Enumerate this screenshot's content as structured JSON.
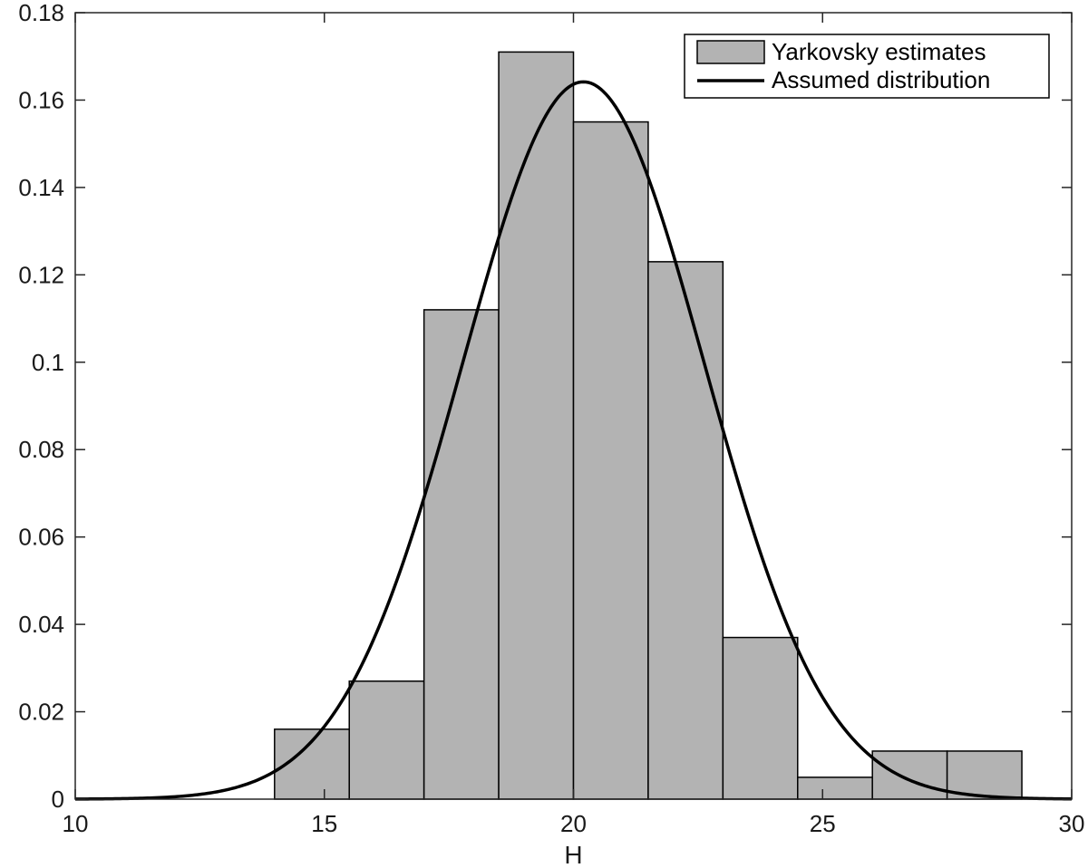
{
  "chart_data": {
    "type": "bar",
    "title": "",
    "xlabel": "H",
    "ylabel": "",
    "xlim": [
      10,
      30
    ],
    "ylim": [
      0,
      0.18
    ],
    "xticks": [
      "10",
      "15",
      "20",
      "25",
      "30"
    ],
    "yticks": [
      "0",
      "0.02",
      "0.04",
      "0.06",
      "0.08",
      "0.1",
      "0.12",
      "0.14",
      "0.16",
      "0.18"
    ],
    "grid": false,
    "legend_position": "top-right",
    "bin_edges": [
      14.0,
      15.5,
      17.0,
      18.5,
      20.0,
      21.5,
      23.0,
      24.5,
      26.0,
      27.5,
      29.0
    ],
    "series": [
      {
        "name": "Yarkovsky estimates",
        "kind": "histogram",
        "color": "#b3b3b3",
        "values": [
          0.016,
          0.027,
          0.112,
          0.171,
          0.155,
          0.123,
          0.037,
          0.005,
          0.011,
          0.011
        ]
      },
      {
        "name": "Assumed distribution",
        "kind": "line",
        "color": "#000000",
        "distribution": "normal",
        "mean": 20.2,
        "std": 2.43
      }
    ]
  }
}
